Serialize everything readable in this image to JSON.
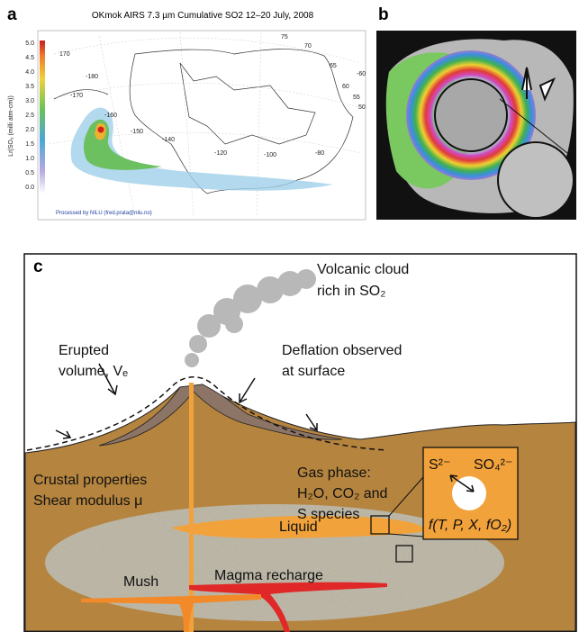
{
  "panel_a": {
    "label": "a",
    "title": "OKmok  AIRS 7.3 µm Cumulative SO2 12–20 July, 2008",
    "colorbar_label": "Lr(SO₂ (milli atm-cm))",
    "colorbar_ticks": [
      "5.0",
      "4.5",
      "4.0",
      "3.5",
      "3.0",
      "2.5",
      "2.0",
      "1.5",
      "1.0",
      "0.5",
      "0.0"
    ],
    "map_labels": [
      "170",
      "-180",
      "-170",
      "-160",
      "-150",
      "-140",
      "-120",
      "-100",
      "-80",
      "-60",
      "75",
      "70",
      "65",
      "60",
      "55",
      "50"
    ],
    "credit": "Processed by NILU (fred.prata@nilu.no)"
  },
  "panel_b": {
    "label": "b"
  },
  "panel_c": {
    "label": "c",
    "cloud": [
      "Volcanic cloud",
      "rich in SO₂"
    ],
    "erupted": [
      "Erupted",
      "volume, Vₑ"
    ],
    "deflation": [
      "Deflation observed",
      "at surface"
    ],
    "crust": [
      "Crustal properties",
      "Shear modulus μ"
    ],
    "gas": [
      "Gas phase:",
      "H₂O, CO₂ and",
      "S species"
    ],
    "inset": {
      "sulfide": "S²⁻",
      "sulfate": "SO₄²⁻",
      "function": "f(T, P, X, fO₂)"
    },
    "liquid": "Liquid",
    "mush": "Mush",
    "recharge": "Magma recharge"
  }
}
